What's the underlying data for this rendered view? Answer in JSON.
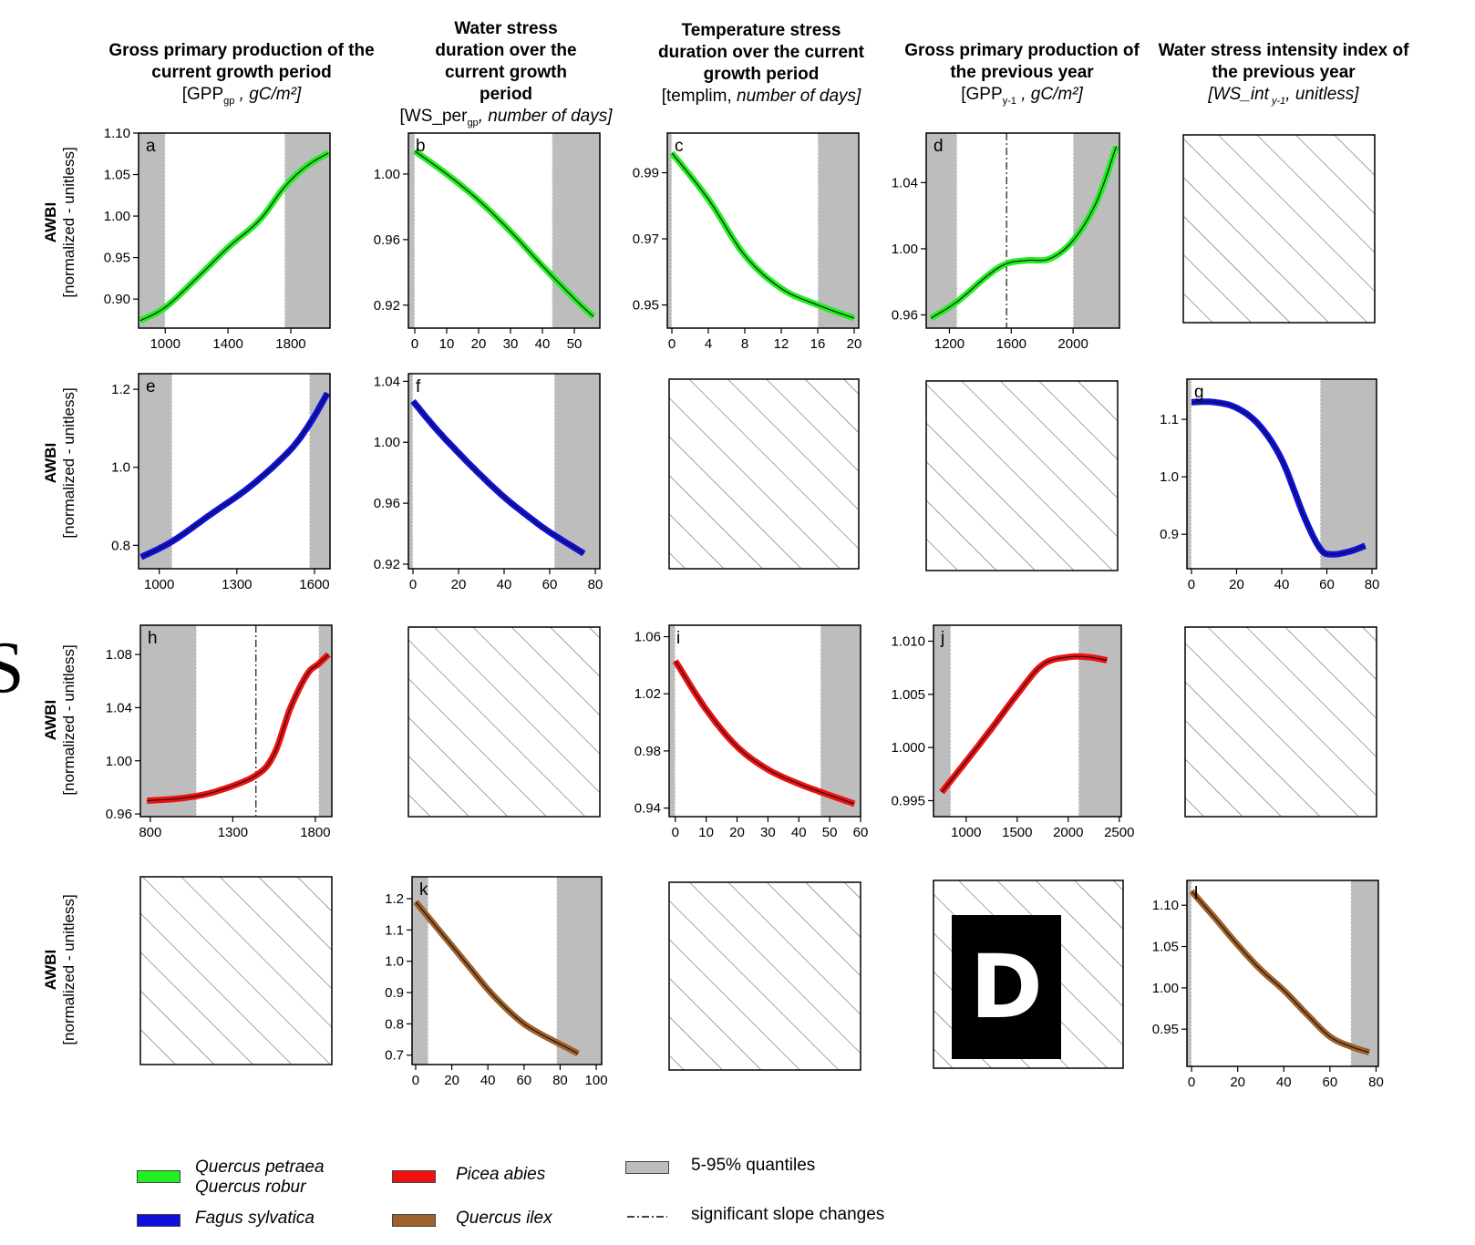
{
  "columns": [
    {
      "title": "Gross primary production of the current growth period",
      "unit_main": "[GPP",
      "unit_sub": "gp",
      "unit_rest": " , gC/m²]"
    },
    {
      "title": "Water stress duration over the current growth period",
      "unit_main": "[WS_per",
      "unit_sub": "gp",
      "unit_rest": ", number of days]"
    },
    {
      "title": "Temperature stress duration over the current growth period",
      "unit_main": "[templim, ",
      "unit_sub": "",
      "unit_rest": "number of days]"
    },
    {
      "title": "Gross primary production of the previous year",
      "unit_main": "[GPP",
      "unit_sub": "y-1",
      "unit_rest": " , gC/m²]"
    },
    {
      "title": "Water stress intensity index of the previous year",
      "unit_main": "[WS_int",
      "unit_sub": " y-1",
      "unit_rest": ", unitless]"
    }
  ],
  "ylabel": {
    "bold": "AWBI",
    "normal": "[normalized - unitless]"
  },
  "edge_letter": "S",
  "stamp": "D",
  "colors": {
    "qp": "#22ee22",
    "fs": "#1010dd",
    "pa": "#ee1111",
    "qi": "#a0602a",
    "quantile": "#bdbdbd"
  },
  "legend": {
    "qp": [
      "Quercus petraea",
      "Quercus robur"
    ],
    "fs": "Fagus sylvatica",
    "pa": "Picea abies",
    "qi": "Quercus ilex",
    "quantile": "5-95% quantiles",
    "slope": "significant slope changes"
  },
  "chart_data": [
    {
      "panel": "a",
      "type": "line",
      "series": "qp",
      "xlim": [
        830,
        2050
      ],
      "ylim": [
        0.865,
        1.1
      ],
      "xticks": [
        1000,
        1400,
        1800
      ],
      "yticks": [
        0.9,
        0.95,
        1.0,
        1.05,
        1.1
      ],
      "q_low": 1000,
      "q_high": 1760,
      "slope_change": null,
      "x": [
        840,
        1000,
        1200,
        1400,
        1600,
        1760,
        1900,
        2040
      ],
      "y": [
        0.874,
        0.89,
        0.925,
        0.962,
        0.995,
        1.035,
        1.06,
        1.076
      ]
    },
    {
      "panel": "b",
      "type": "line",
      "series": "qp",
      "xlim": [
        -2,
        58
      ],
      "ylim": [
        0.906,
        1.025
      ],
      "xticks": [
        0,
        10,
        20,
        30,
        40,
        50
      ],
      "yticks": [
        0.92,
        0.96,
        1.0
      ],
      "q_low": 0,
      "q_high": 43,
      "slope_change": null,
      "x": [
        0,
        10,
        20,
        30,
        40,
        50,
        56
      ],
      "y": [
        1.014,
        1.0,
        0.984,
        0.965,
        0.944,
        0.924,
        0.913
      ]
    },
    {
      "panel": "c",
      "type": "line",
      "series": "qp",
      "xlim": [
        -0.5,
        20.5
      ],
      "ylim": [
        0.943,
        1.002
      ],
      "xticks": [
        0,
        4,
        8,
        12,
        16,
        20
      ],
      "yticks": [
        0.95,
        0.97,
        0.99
      ],
      "q_low": 0,
      "q_high": 16,
      "slope_change": null,
      "x": [
        0,
        4,
        8,
        12,
        16,
        20
      ],
      "y": [
        0.996,
        0.982,
        0.965,
        0.955,
        0.95,
        0.946
      ]
    },
    {
      "panel": "d",
      "type": "line",
      "series": "qp",
      "xlim": [
        1050,
        2300
      ],
      "ylim": [
        0.952,
        1.07
      ],
      "xticks": [
        1200,
        1600,
        2000
      ],
      "yticks": [
        0.96,
        1.0,
        1.04
      ],
      "q_low": 1250,
      "q_high": 2000,
      "slope_change": 1570,
      "x": [
        1080,
        1250,
        1450,
        1570,
        1700,
        1850,
        2000,
        2150,
        2280
      ],
      "y": [
        0.958,
        0.968,
        0.984,
        0.991,
        0.993,
        0.994,
        1.005,
        1.028,
        1.062
      ]
    },
    {
      "panel": "e",
      "type": "line",
      "series": "fs",
      "xlim": [
        920,
        1660
      ],
      "ylim": [
        0.74,
        1.24
      ],
      "xticks": [
        1000,
        1300,
        1600
      ],
      "yticks": [
        0.8,
        1.0,
        1.2
      ],
      "q_low": 1050,
      "q_high": 1580,
      "slope_change": null,
      "x": [
        930,
        1050,
        1200,
        1350,
        1500,
        1580,
        1650
      ],
      "y": [
        0.77,
        0.81,
        0.88,
        0.95,
        1.04,
        1.11,
        1.19
      ]
    },
    {
      "panel": "f",
      "type": "line",
      "series": "fs",
      "xlim": [
        -2,
        82
      ],
      "ylim": [
        0.917,
        1.045
      ],
      "xticks": [
        0,
        20,
        40,
        60,
        80
      ],
      "yticks": [
        0.92,
        0.96,
        1.0,
        1.04
      ],
      "q_low": 0,
      "q_high": 62,
      "slope_change": null,
      "x": [
        0,
        10,
        20,
        30,
        40,
        50,
        60,
        75
      ],
      "y": [
        1.027,
        1.009,
        0.993,
        0.978,
        0.964,
        0.952,
        0.941,
        0.927
      ]
    },
    {
      "panel": "g",
      "type": "line",
      "series": "fs",
      "xlim": [
        -2,
        82
      ],
      "ylim": [
        0.84,
        1.17
      ],
      "xticks": [
        0,
        20,
        40,
        60,
        80
      ],
      "yticks": [
        0.9,
        1.0,
        1.1
      ],
      "q_low": 0,
      "q_high": 57,
      "slope_change": null,
      "x": [
        0,
        10,
        20,
        30,
        40,
        50,
        57,
        62,
        70,
        77
      ],
      "y": [
        1.13,
        1.13,
        1.12,
        1.09,
        1.03,
        0.93,
        0.875,
        0.865,
        0.87,
        0.88
      ]
    },
    {
      "panel": "h",
      "type": "line",
      "series": "pa",
      "xlim": [
        740,
        1900
      ],
      "ylim": [
        0.958,
        1.102
      ],
      "xticks": [
        800,
        1300,
        1800
      ],
      "yticks": [
        0.96,
        1.0,
        1.04,
        1.08
      ],
      "q_low": 1080,
      "q_high": 1820,
      "slope_change": 1440,
      "x": [
        780,
        1000,
        1200,
        1440,
        1550,
        1650,
        1750,
        1820,
        1880
      ],
      "y": [
        0.97,
        0.972,
        0.977,
        0.989,
        1.005,
        1.04,
        1.065,
        1.073,
        1.08
      ]
    },
    {
      "panel": "i",
      "type": "line",
      "series": "pa",
      "xlim": [
        -2,
        60
      ],
      "ylim": [
        0.934,
        1.068
      ],
      "xticks": [
        0,
        10,
        20,
        30,
        40,
        50,
        60
      ],
      "yticks": [
        0.94,
        0.98,
        1.02,
        1.06
      ],
      "q_low": 0,
      "q_high": 47,
      "slope_change": null,
      "x": [
        0,
        10,
        20,
        30,
        40,
        50,
        58
      ],
      "y": [
        1.043,
        1.009,
        0.983,
        0.967,
        0.957,
        0.949,
        0.943
      ]
    },
    {
      "panel": "j",
      "type": "line",
      "series": "pa",
      "xlim": [
        680,
        2520
      ],
      "ylim": [
        0.9935,
        1.0115
      ],
      "xticks": [
        1000,
        1500,
        2000,
        2500
      ],
      "yticks": [
        0.995,
        1.0,
        1.005,
        1.01
      ],
      "q_low": 850,
      "q_high": 2100,
      "slope_change": null,
      "x": [
        760,
        1000,
        1250,
        1500,
        1750,
        2000,
        2200,
        2380
      ],
      "y": [
        0.9958,
        0.9987,
        1.0018,
        1.005,
        1.0078,
        1.0085,
        1.0085,
        1.0082
      ]
    },
    {
      "panel": "k",
      "type": "line",
      "series": "qi",
      "xlim": [
        -2,
        103
      ],
      "ylim": [
        0.67,
        1.27
      ],
      "xticks": [
        0,
        20,
        40,
        60,
        80,
        100
      ],
      "yticks": [
        0.7,
        0.8,
        0.9,
        1.0,
        1.1,
        1.2
      ],
      "q_low": 7,
      "q_high": 78,
      "slope_change": null,
      "x": [
        0,
        10,
        20,
        30,
        40,
        50,
        60,
        70,
        80,
        90
      ],
      "y": [
        1.19,
        1.12,
        1.05,
        0.98,
        0.91,
        0.85,
        0.8,
        0.765,
        0.735,
        0.705
      ]
    },
    {
      "panel": "l",
      "type": "line",
      "series": "qi",
      "xlim": [
        -2,
        81
      ],
      "ylim": [
        0.905,
        1.13
      ],
      "xticks": [
        0,
        20,
        40,
        60,
        80
      ],
      "yticks": [
        0.95,
        1.0,
        1.05,
        1.1
      ],
      "q_low": 0,
      "q_high": 69,
      "slope_change": null,
      "x": [
        0,
        10,
        20,
        30,
        40,
        50,
        60,
        69,
        77
      ],
      "y": [
        1.117,
        1.085,
        1.052,
        1.022,
        0.997,
        0.968,
        0.941,
        0.929,
        0.922
      ]
    }
  ]
}
